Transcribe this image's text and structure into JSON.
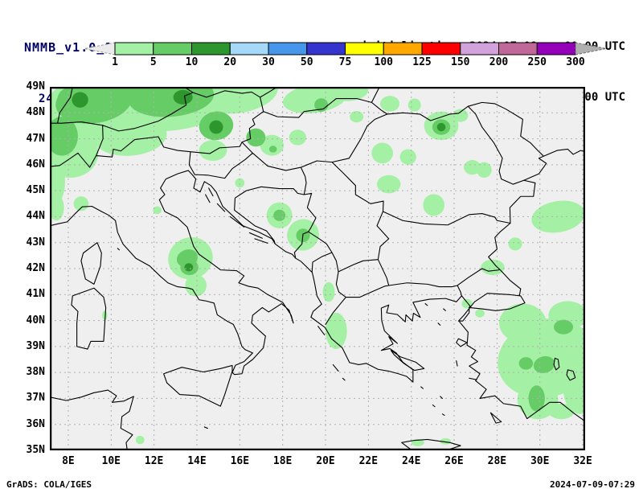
{
  "header": {
    "model_title": "NMMB_v1.0_10km",
    "resolution_note": "( . x . degree )",
    "product_title": "24-h Acc.Prec.",
    "init_line": "initialisation: 2024.07.09.   00:00 UTC",
    "valid_line": "valid(+72h): 2024.JUL.12 00:00 UTC"
  },
  "colorbar": {
    "levels": [
      "1",
      "5",
      "10",
      "20",
      "30",
      "50",
      "75",
      "100",
      "125",
      "150",
      "200",
      "250",
      "300"
    ],
    "colors": [
      "#a4f0a4",
      "#66cc66",
      "#2d962d",
      "#a6d8f7",
      "#4696ec",
      "#3535cd",
      "#ffff00",
      "#ffa800",
      "#fc0000",
      "#d2a2dc",
      "#c06898",
      "#9400ba"
    ],
    "underflow_color": "#ececec",
    "overflow_color": "#b0b0b0"
  },
  "map": {
    "background": "#efefef",
    "grid_color": "#b0b0b0",
    "extent": {
      "lon_min": 7.14,
      "lon_max": 32.11,
      "lat_min": 35,
      "lat_max": 49
    },
    "lon_ticks": [
      {
        "v": 8,
        "label": "8E"
      },
      {
        "v": 10,
        "label": "10E"
      },
      {
        "v": 12,
        "label": "12E"
      },
      {
        "v": 14,
        "label": "14E"
      },
      {
        "v": 16,
        "label": "16E"
      },
      {
        "v": 18,
        "label": "18E"
      },
      {
        "v": 20,
        "label": "20E"
      },
      {
        "v": 22,
        "label": "22E"
      },
      {
        "v": 24,
        "label": "24E"
      },
      {
        "v": 26,
        "label": "26E"
      },
      {
        "v": 28,
        "label": "28E"
      },
      {
        "v": 30,
        "label": "30E"
      },
      {
        "v": 32,
        "label": "32E"
      }
    ],
    "lat_ticks": [
      {
        "v": 49,
        "label": "49N"
      },
      {
        "v": 48,
        "label": "48N"
      },
      {
        "v": 47,
        "label": "47N"
      },
      {
        "v": 46,
        "label": "46N"
      },
      {
        "v": 45,
        "label": "45N"
      },
      {
        "v": 44,
        "label": "44N"
      },
      {
        "v": 43,
        "label": "43N"
      },
      {
        "v": 42,
        "label": "42N"
      },
      {
        "v": 41,
        "label": "41N"
      },
      {
        "v": 40,
        "label": "40N"
      },
      {
        "v": 39,
        "label": "39N"
      },
      {
        "v": 38,
        "label": "38N"
      },
      {
        "v": 37,
        "label": "37N"
      },
      {
        "v": 36,
        "label": "36N"
      },
      {
        "v": 35,
        "label": "35N"
      }
    ]
  },
  "chart_data": {
    "type": "heatmap",
    "title": "NMMB_v1.0_10km 24-h Acc.Prec.",
    "variable": "24-hour accumulated precipitation",
    "initialisation": "2024.07.09. 00:00 UTC",
    "valid": "+72h 2024.JUL.12 00:00 UTC",
    "levels": [
      1,
      5,
      10,
      20,
      30,
      50,
      75,
      100,
      125,
      150,
      200,
      250,
      300
    ],
    "palette": [
      "#a4f0a4",
      "#66cc66",
      "#2d962d",
      "#a6d8f7",
      "#4696ec",
      "#3535cd",
      "#ffff00",
      "#ffa800",
      "#fc0000",
      "#d2a2dc",
      "#c06898",
      "#9400ba"
    ],
    "extent": {
      "lon": [
        7.14,
        32.11
      ],
      "lat": [
        35,
        49
      ]
    },
    "grid": {
      "lon_step": 2,
      "lat_step": 1,
      "style": "dashed"
    },
    "level_colors": {
      "1-5": "#a4f0a4",
      "5-10": "#66cc66",
      "10-20": "#2d962d"
    },
    "precip_cells": [
      {
        "lon": 9.0,
        "lat": 48.1,
        "rx": 2.2,
        "ry": 1.3,
        "rot": -8,
        "level": "1-5"
      },
      {
        "lon": 12.6,
        "lat": 48.4,
        "rx": 3.2,
        "ry": 1.1,
        "rot": -5,
        "level": "1-5"
      },
      {
        "lon": 16.0,
        "lat": 48.75,
        "rx": 1.8,
        "ry": 0.75,
        "rot": -10,
        "level": "1-5"
      },
      {
        "lon": 15.3,
        "lat": 49.1,
        "rx": 0.9,
        "ry": 0.35,
        "rot": 0,
        "level": "1-5"
      },
      {
        "lon": 8.1,
        "lat": 46.45,
        "rx": 1.3,
        "ry": 0.95,
        "rot": 0,
        "level": "1-5"
      },
      {
        "lon": 10.9,
        "lat": 47.1,
        "rx": 1.7,
        "ry": 0.75,
        "rot": -5,
        "level": "1-5"
      },
      {
        "lon": 7.4,
        "lat": 45.35,
        "rx": 0.45,
        "ry": 0.85,
        "rot": 0,
        "level": "1-5"
      },
      {
        "lon": 7.45,
        "lat": 44.35,
        "rx": 0.35,
        "ry": 0.5,
        "rot": 0,
        "level": "1-5"
      },
      {
        "lon": 19.5,
        "lat": 48.55,
        "rx": 1.5,
        "ry": 0.55,
        "rot": -8,
        "level": "1-5"
      },
      {
        "lon": 21.0,
        "lat": 48.9,
        "rx": 1.0,
        "ry": 0.45,
        "rot": 0,
        "level": "1-5"
      },
      {
        "lon": 14.75,
        "lat": 46.55,
        "rx": 0.65,
        "ry": 0.4,
        "rot": 0,
        "level": "1-5"
      },
      {
        "lon": 17.5,
        "lat": 46.75,
        "rx": 0.55,
        "ry": 0.4,
        "rot": 0,
        "level": "1-5"
      },
      {
        "lon": 18.7,
        "lat": 47.05,
        "rx": 0.4,
        "ry": 0.3,
        "rot": 0,
        "level": "1-5"
      },
      {
        "lon": 8.6,
        "lat": 44.5,
        "rx": 0.35,
        "ry": 0.28,
        "rot": 0,
        "level": "1-5"
      },
      {
        "lon": 13.7,
        "lat": 42.4,
        "rx": 1.05,
        "ry": 0.8,
        "rot": -20,
        "level": "1-5"
      },
      {
        "lon": 13.95,
        "lat": 41.35,
        "rx": 0.5,
        "ry": 0.42,
        "rot": 0,
        "level": "1-5"
      },
      {
        "lon": 17.85,
        "lat": 44.05,
        "rx": 0.6,
        "ry": 0.5,
        "rot": -15,
        "level": "1-5"
      },
      {
        "lon": 18.95,
        "lat": 43.3,
        "rx": 0.75,
        "ry": 0.6,
        "rot": -30,
        "level": "1-5"
      },
      {
        "lon": 20.5,
        "lat": 39.6,
        "rx": 0.5,
        "ry": 0.7,
        "rot": 0,
        "level": "1-5"
      },
      {
        "lon": 25.4,
        "lat": 47.5,
        "rx": 0.8,
        "ry": 0.55,
        "rot": 0,
        "level": "1-5"
      },
      {
        "lon": 22.65,
        "lat": 46.45,
        "rx": 0.5,
        "ry": 0.4,
        "rot": 0,
        "level": "1-5"
      },
      {
        "lon": 23.85,
        "lat": 46.3,
        "rx": 0.38,
        "ry": 0.3,
        "rot": 0,
        "level": "1-5"
      },
      {
        "lon": 22.95,
        "lat": 45.25,
        "rx": 0.55,
        "ry": 0.35,
        "rot": 0,
        "level": "1-5"
      },
      {
        "lon": 25.05,
        "lat": 44.45,
        "rx": 0.5,
        "ry": 0.42,
        "rot": 0,
        "level": "1-5"
      },
      {
        "lon": 26.85,
        "lat": 45.9,
        "rx": 0.4,
        "ry": 0.28,
        "rot": 0,
        "level": "1-5"
      },
      {
        "lon": 24.15,
        "lat": 48.3,
        "rx": 0.3,
        "ry": 0.25,
        "rot": 0,
        "level": "1-5"
      },
      {
        "lon": 21.45,
        "lat": 47.85,
        "rx": 0.32,
        "ry": 0.22,
        "rot": 0,
        "level": "1-5"
      },
      {
        "lon": 26.3,
        "lat": 47.9,
        "rx": 0.35,
        "ry": 0.25,
        "rot": 0,
        "level": "1-5"
      },
      {
        "lon": 23.0,
        "lat": 48.35,
        "rx": 0.45,
        "ry": 0.3,
        "rot": 0,
        "level": "1-5"
      },
      {
        "lon": 30.85,
        "lat": 44.0,
        "rx": 1.25,
        "ry": 0.6,
        "rot": -10,
        "level": "1-5"
      },
      {
        "lon": 27.4,
        "lat": 45.8,
        "rx": 0.35,
        "ry": 0.3,
        "rot": 0,
        "level": "1-5"
      },
      {
        "lon": 30.3,
        "lat": 38.55,
        "rx": 2.3,
        "ry": 1.5,
        "rot": -15,
        "level": "1-5"
      },
      {
        "lon": 29.2,
        "lat": 39.9,
        "rx": 1.1,
        "ry": 0.75,
        "rot": 0,
        "level": "1-5"
      },
      {
        "lon": 31.3,
        "lat": 40.2,
        "rx": 0.9,
        "ry": 0.55,
        "rot": 0,
        "level": "1-5"
      },
      {
        "lon": 29.9,
        "lat": 36.95,
        "rx": 0.95,
        "ry": 0.75,
        "rot": 0,
        "level": "1-5"
      },
      {
        "lon": 31.9,
        "lat": 37.3,
        "rx": 0.8,
        "ry": 0.9,
        "rot": 0,
        "level": "1-5"
      },
      {
        "lon": 31.0,
        "lat": 36.5,
        "rx": 0.6,
        "ry": 0.3,
        "rot": 0,
        "level": "1-5"
      },
      {
        "lon": 27.8,
        "lat": 42.05,
        "rx": 0.55,
        "ry": 0.3,
        "rot": 0,
        "level": "1-5"
      },
      {
        "lon": 28.85,
        "lat": 42.95,
        "rx": 0.32,
        "ry": 0.25,
        "rot": 0,
        "level": "1-5"
      },
      {
        "lon": 26.6,
        "lat": 40.65,
        "rx": 0.25,
        "ry": 0.18,
        "rot": 0,
        "level": "1-5"
      },
      {
        "lon": 27.2,
        "lat": 40.28,
        "rx": 0.22,
        "ry": 0.16,
        "rot": 0,
        "level": "1-5"
      },
      {
        "lon": 24.3,
        "lat": 35.3,
        "rx": 0.3,
        "ry": 0.14,
        "rot": 0,
        "level": "1-5"
      },
      {
        "lon": 25.6,
        "lat": 35.35,
        "rx": 0.26,
        "ry": 0.12,
        "rot": 0,
        "level": "1-5"
      },
      {
        "lon": 11.35,
        "lat": 35.4,
        "rx": 0.2,
        "ry": 0.16,
        "rot": 0,
        "level": "1-5"
      },
      {
        "lon": 20.15,
        "lat": 41.1,
        "rx": 0.28,
        "ry": 0.38,
        "rot": 0,
        "level": "1-5"
      },
      {
        "lon": 16.0,
        "lat": 45.3,
        "rx": 0.22,
        "ry": 0.18,
        "rot": 0,
        "level": "1-5"
      },
      {
        "lon": 9.7,
        "lat": 40.2,
        "rx": 0.12,
        "ry": 0.18,
        "rot": 0,
        "level": "1-5"
      },
      {
        "lon": 12.15,
        "lat": 44.25,
        "rx": 0.2,
        "ry": 0.15,
        "rot": 0,
        "level": "1-5"
      },
      {
        "lon": 9.2,
        "lat": 48.45,
        "rx": 1.8,
        "ry": 0.85,
        "rot": -8,
        "level": "5-10"
      },
      {
        "lon": 12.8,
        "lat": 48.6,
        "rx": 2.0,
        "ry": 0.75,
        "rot": -5,
        "level": "5-10"
      },
      {
        "lon": 7.7,
        "lat": 47.1,
        "rx": 0.75,
        "ry": 0.75,
        "rot": 0,
        "level": "5-10"
      },
      {
        "lon": 8.4,
        "lat": 48.55,
        "rx": 0.9,
        "ry": 0.5,
        "rot": 0,
        "level": "5-10"
      },
      {
        "lon": 11.4,
        "lat": 48.85,
        "rx": 0.8,
        "ry": 0.35,
        "rot": 0,
        "level": "5-10"
      },
      {
        "lon": 14.9,
        "lat": 47.5,
        "rx": 0.8,
        "ry": 0.55,
        "rot": -10,
        "level": "5-10"
      },
      {
        "lon": 16.75,
        "lat": 47.05,
        "rx": 0.45,
        "ry": 0.35,
        "rot": 0,
        "level": "5-10"
      },
      {
        "lon": 19.8,
        "lat": 48.3,
        "rx": 0.32,
        "ry": 0.26,
        "rot": 0,
        "level": "5-10"
      },
      {
        "lon": 13.55,
        "lat": 42.4,
        "rx": 0.5,
        "ry": 0.33,
        "rot": -20,
        "level": "5-10"
      },
      {
        "lon": 13.65,
        "lat": 42.05,
        "rx": 0.42,
        "ry": 0.3,
        "rot": 0,
        "level": "5-10"
      },
      {
        "lon": 17.85,
        "lat": 44.05,
        "rx": 0.28,
        "ry": 0.22,
        "rot": 0,
        "level": "5-10"
      },
      {
        "lon": 18.95,
        "lat": 43.28,
        "rx": 0.32,
        "ry": 0.26,
        "rot": -30,
        "level": "5-10"
      },
      {
        "lon": 25.4,
        "lat": 47.45,
        "rx": 0.42,
        "ry": 0.3,
        "rot": 0,
        "level": "5-10"
      },
      {
        "lon": 30.2,
        "lat": 38.3,
        "rx": 0.5,
        "ry": 0.32,
        "rot": -15,
        "level": "5-10"
      },
      {
        "lon": 31.1,
        "lat": 39.75,
        "rx": 0.45,
        "ry": 0.28,
        "rot": 0,
        "level": "5-10"
      },
      {
        "lon": 29.35,
        "lat": 38.35,
        "rx": 0.33,
        "ry": 0.24,
        "rot": 0,
        "level": "5-10"
      },
      {
        "lon": 29.85,
        "lat": 37.0,
        "rx": 0.38,
        "ry": 0.5,
        "rot": 0,
        "level": "5-10"
      },
      {
        "lon": 17.55,
        "lat": 46.6,
        "rx": 0.18,
        "ry": 0.13,
        "rot": 0,
        "level": "5-10"
      },
      {
        "lon": 8.55,
        "lat": 48.5,
        "rx": 0.38,
        "ry": 0.3,
        "rot": 0,
        "level": "10-20"
      },
      {
        "lon": 13.35,
        "lat": 48.6,
        "rx": 0.45,
        "ry": 0.28,
        "rot": 0,
        "level": "10-20"
      },
      {
        "lon": 14.9,
        "lat": 47.45,
        "rx": 0.32,
        "ry": 0.26,
        "rot": 0,
        "level": "10-20"
      },
      {
        "lon": 13.62,
        "lat": 42.05,
        "rx": 0.2,
        "ry": 0.16,
        "rot": 0,
        "level": "10-20"
      },
      {
        "lon": 25.4,
        "lat": 47.45,
        "rx": 0.2,
        "ry": 0.16,
        "rot": 0,
        "level": "10-20"
      }
    ]
  },
  "footer": {
    "left": "GrADS: COLA/IGES",
    "right": "2024-07-09-07:29"
  }
}
